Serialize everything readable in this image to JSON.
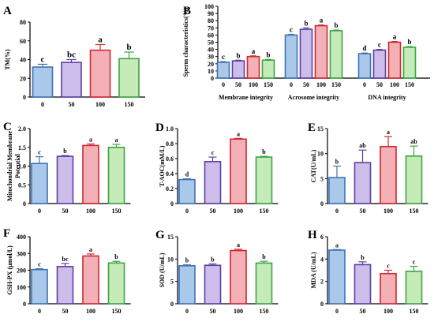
{
  "colors": {
    "fills": [
      "#a9c8ea",
      "#cdbdea",
      "#f3b0b6",
      "#c5ebb8"
    ],
    "strokes": [
      "#3d73b5",
      "#5e3fa2",
      "#d0282f",
      "#3ba443"
    ]
  },
  "chart_data": [
    {
      "panel": "A",
      "type": "bar",
      "categories": [
        "0",
        "50",
        "100",
        "150"
      ],
      "values": [
        32,
        37,
        50,
        41
      ],
      "errors": [
        3,
        3,
        6,
        7
      ],
      "sig": [
        "c",
        "bc",
        "a",
        "b"
      ],
      "ylabel": "TM(%)",
      "ylim": [
        0,
        80
      ],
      "yticks": [
        "0",
        "20",
        "40",
        "60",
        "80"
      ]
    },
    {
      "panel": "B",
      "type": "bar",
      "groups": [
        "Membrane integrity",
        "Acrosome integrity",
        "DNA integrity"
      ],
      "categories": [
        "0",
        "50",
        "100",
        "150"
      ],
      "series": [
        {
          "values": [
            22,
            24,
            30,
            25
          ],
          "errors": [
            1,
            1,
            1,
            1
          ],
          "sig": [
            "c",
            "b",
            "a",
            "b"
          ]
        },
        {
          "values": [
            60,
            68,
            73,
            66
          ],
          "errors": [
            1,
            2,
            1,
            1
          ],
          "sig": [
            "c",
            "b",
            "a",
            "b"
          ]
        },
        {
          "values": [
            34,
            39,
            50,
            43
          ],
          "errors": [
            1,
            1,
            1,
            1
          ],
          "sig": [
            "d",
            "c",
            "a",
            "b"
          ]
        }
      ],
      "ylabel": "Sperm characteristics(%)",
      "ylim": [
        0,
        100
      ],
      "yticks": [
        "0",
        "10",
        "20",
        "30",
        "40",
        "50",
        "60",
        "70",
        "80",
        "90",
        "100"
      ]
    },
    {
      "panel": "C",
      "type": "bar",
      "categories": [
        "0",
        "50",
        "100",
        "150"
      ],
      "values": [
        1.07,
        1.26,
        1.55,
        1.5
      ],
      "errors": [
        0.18,
        0.02,
        0.04,
        0.08
      ],
      "sig": [
        "c",
        "b",
        "a",
        "a"
      ],
      "ylabel": "Mitochondrial Membrane Potential",
      "ylabel_lines": [
        "Mitochondrial Membrane",
        "Potential"
      ],
      "ylim": [
        0,
        2.0
      ],
      "yticks": [
        "0",
        "0.5",
        "1.0",
        "1.5",
        "2.0"
      ]
    },
    {
      "panel": "D",
      "type": "bar",
      "categories": [
        "0",
        "50",
        "100",
        "150"
      ],
      "values": [
        0.32,
        0.56,
        0.86,
        0.62
      ],
      "errors": [
        0.01,
        0.06,
        0.01,
        0.01
      ],
      "sig": [
        "d",
        "c",
        "a",
        "b"
      ],
      "ylabel": "T-AOC(mM/L)",
      "ylim": [
        0,
        1.0
      ],
      "yticks": [
        "0",
        "0.2",
        "0.4",
        "0.6",
        "0.8",
        "1.0"
      ]
    },
    {
      "panel": "E",
      "type": "bar",
      "categories": [
        "0",
        "50",
        "100",
        "150"
      ],
      "values": [
        5.2,
        8.2,
        11.4,
        9.5
      ],
      "errors": [
        2.3,
        2.5,
        2.0,
        2.0
      ],
      "sig": [
        "b",
        "ab",
        "a",
        "ab"
      ],
      "ylabel": "CAT(U/mL)",
      "ylim": [
        0,
        15
      ],
      "yticks": [
        "0",
        "5",
        "10",
        "15"
      ]
    },
    {
      "panel": "F",
      "type": "bar",
      "categories": [
        "0",
        "50",
        "100",
        "150"
      ],
      "values": [
        204,
        222,
        285,
        243
      ],
      "errors": [
        5,
        18,
        12,
        10
      ],
      "sig": [
        "c",
        "bc",
        "a",
        "b"
      ],
      "ylabel": "GSH-PX (μmol/L)",
      "ylim": [
        0,
        400
      ],
      "yticks": [
        "0",
        "100",
        "200",
        "300",
        "400"
      ]
    },
    {
      "panel": "G",
      "type": "bar",
      "categories": [
        "0",
        "50",
        "100",
        "150"
      ],
      "values": [
        8.5,
        8.6,
        11.9,
        9.1
      ],
      "errors": [
        0.2,
        0.3,
        0.3,
        0.4
      ],
      "sig": [
        "b",
        "b",
        "a",
        "b"
      ],
      "ylabel": "SOD (U/mL)",
      "ylim": [
        0,
        15
      ],
      "yticks": [
        "0",
        "5",
        "10",
        "15"
      ]
    },
    {
      "panel": "H",
      "type": "bar",
      "categories": [
        "0",
        "50",
        "100",
        "150"
      ],
      "values": [
        4.8,
        3.5,
        2.7,
        2.9
      ],
      "errors": [
        0.05,
        0.25,
        0.3,
        0.45
      ],
      "sig": [
        "a",
        "b",
        "c",
        "c"
      ],
      "ylabel": "MDA (U/mL)",
      "ylim": [
        0,
        6
      ],
      "yticks": [
        "0",
        "2",
        "4",
        "6"
      ]
    }
  ]
}
